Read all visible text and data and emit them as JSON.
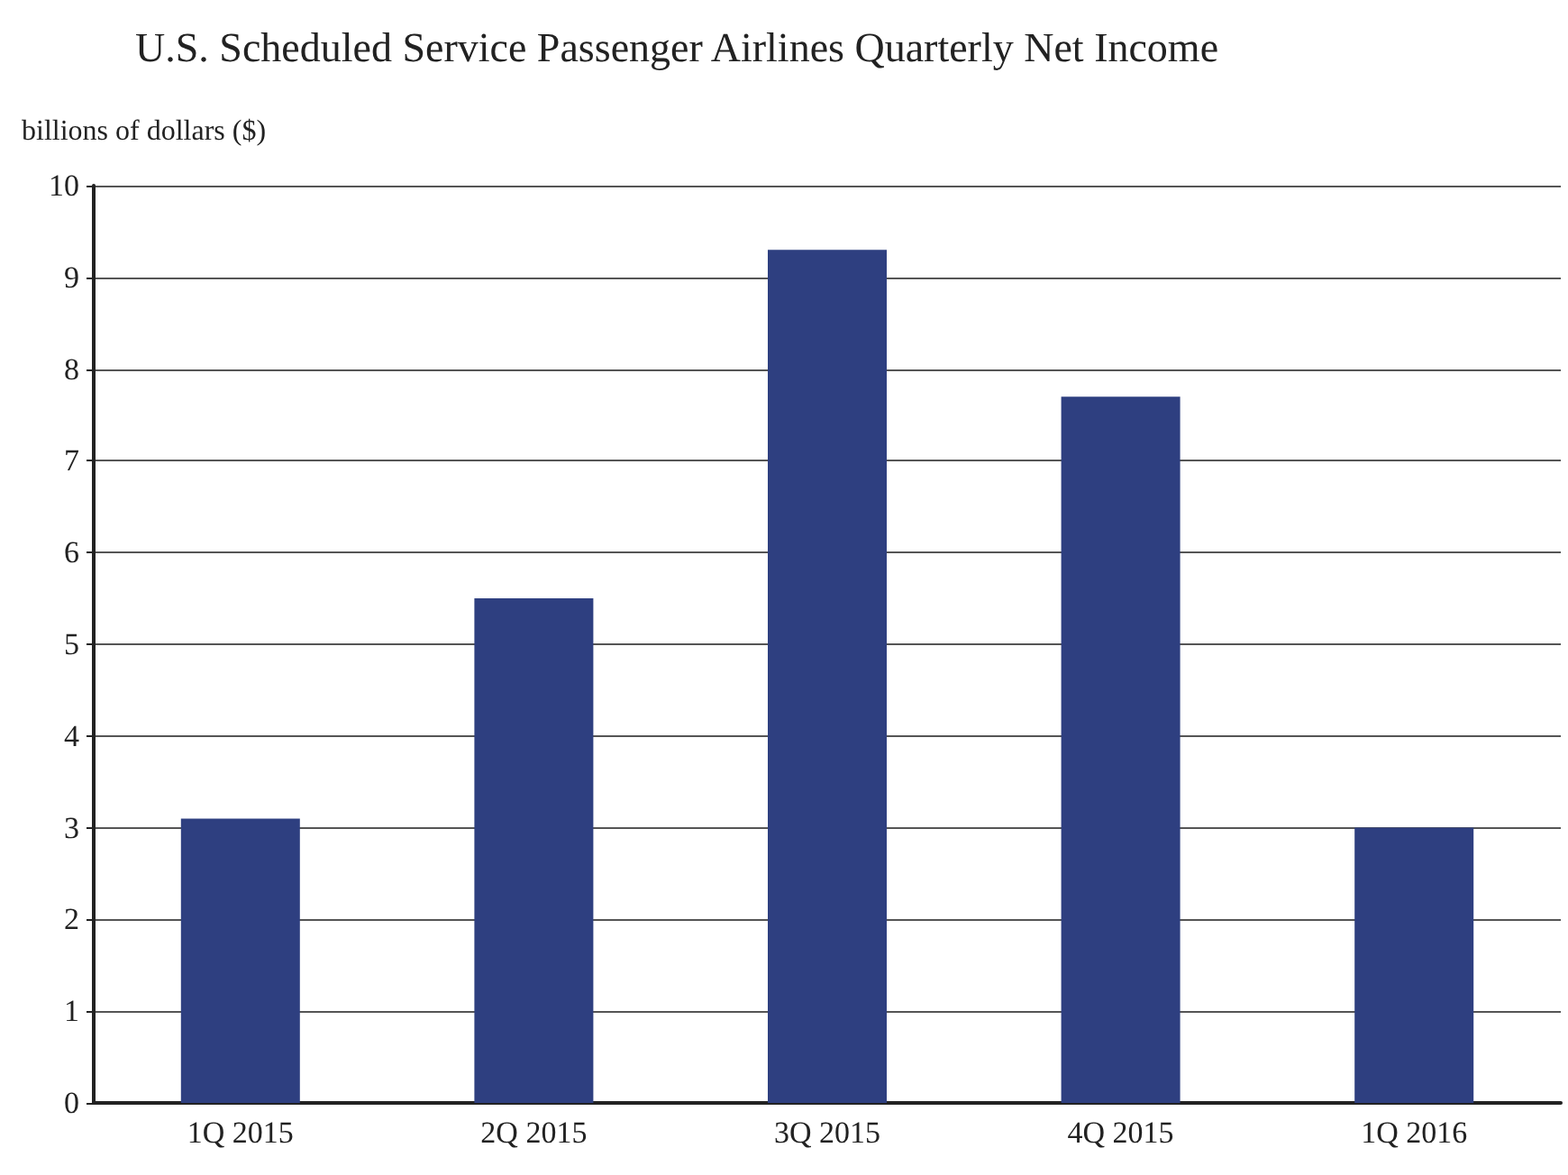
{
  "chart_data": {
    "type": "bar",
    "title": "U.S. Scheduled Service Passenger Airlines Quarterly Net Income",
    "ylabel": "billions of dollars ($)",
    "categories": [
      "1Q 2015",
      "2Q 2015",
      "3Q 2015",
      "4Q 2015",
      "1Q 2016"
    ],
    "values": [
      3.1,
      5.5,
      9.3,
      7.7,
      3.0
    ],
    "color": "#2e3f80",
    "ylim": [
      0,
      10
    ],
    "yticks": [
      0,
      1,
      2,
      3,
      4,
      5,
      6,
      7,
      8,
      9,
      10
    ],
    "grid": "y"
  }
}
